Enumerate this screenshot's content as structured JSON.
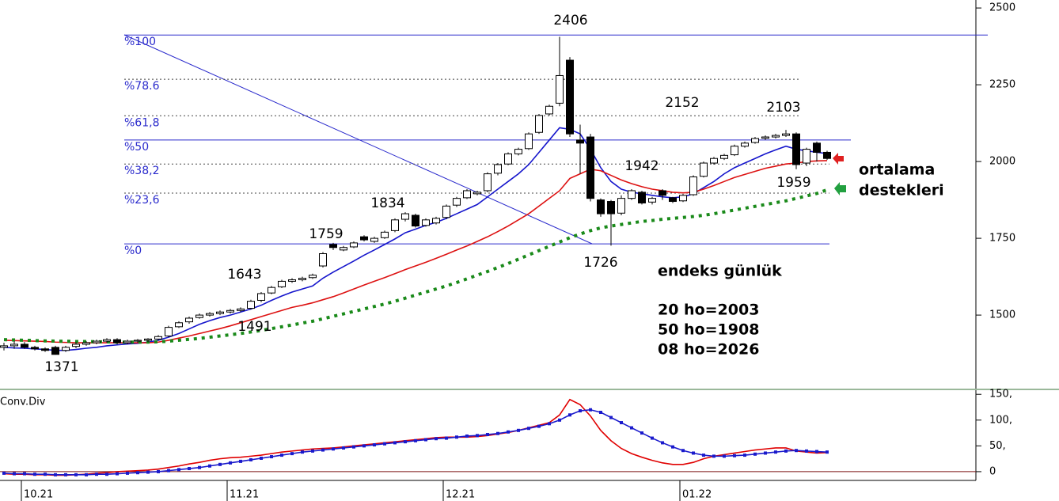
{
  "chart_data": [
    {
      "type": "candlestick",
      "categories": [
        null,
        null,
        "10.21",
        null,
        null,
        null,
        null,
        null,
        null,
        null,
        null,
        null,
        null,
        null,
        null,
        null,
        null,
        null,
        null,
        null,
        null,
        null,
        "11.21",
        null,
        null,
        null,
        null,
        null,
        null,
        null,
        null,
        null,
        null,
        null,
        null,
        null,
        null,
        null,
        null,
        null,
        null,
        null,
        null,
        "12.21",
        null,
        null,
        null,
        null,
        null,
        null,
        null,
        null,
        null,
        null,
        null,
        null,
        null,
        null,
        null,
        null,
        null,
        null,
        null,
        null,
        null,
        null,
        "01.22",
        null,
        null,
        null,
        null,
        null,
        null,
        null,
        null,
        null,
        null,
        null,
        null,
        null,
        null
      ],
      "open": [
        1395,
        1400,
        1405,
        1395,
        1390,
        1395,
        1385,
        1398,
        1405,
        1410,
        1415,
        1420,
        1410,
        1415,
        1418,
        1422,
        1432,
        1462,
        1478,
        1492,
        1500,
        1505,
        1510,
        1515,
        1522,
        1548,
        1572,
        1592,
        1610,
        1615,
        1622,
        1660,
        1730,
        1712,
        1722,
        1755,
        1740,
        1752,
        1775,
        1812,
        1825,
        1792,
        1800,
        1818,
        1858,
        1882,
        1895,
        1905,
        1962,
        1992,
        2025,
        2042,
        2095,
        2155,
        2190,
        2330,
        2070,
        2080,
        1875,
        1870,
        1832,
        1880,
        1900,
        1868,
        1905,
        1882,
        1872,
        1892,
        1952,
        1995,
        2010,
        2022,
        2050,
        2062,
        2076,
        2080,
        2085,
        2090,
        1995,
        2060,
        2030
      ],
      "high": [
        1410,
        1415,
        1412,
        1400,
        1395,
        1400,
        1400,
        1412,
        1415,
        1420,
        1425,
        1425,
        1420,
        1422,
        1425,
        1435,
        1465,
        1480,
        1495,
        1505,
        1510,
        1515,
        1520,
        1525,
        1550,
        1575,
        1595,
        1615,
        1620,
        1625,
        1635,
        1705,
        1735,
        1725,
        1740,
        1760,
        1755,
        1775,
        1815,
        1835,
        1830,
        1815,
        1820,
        1860,
        1885,
        1910,
        1905,
        1965,
        1995,
        2030,
        2045,
        2095,
        2155,
        2185,
        2406,
        2340,
        2120,
        2090,
        1880,
        1875,
        1890,
        1910,
        1905,
        1885,
        1910,
        1885,
        1895,
        1955,
        2000,
        2015,
        2025,
        2055,
        2065,
        2080,
        2085,
        2090,
        2103,
        2095,
        2045,
        2065,
        2035
      ],
      "low": [
        1385,
        1390,
        1390,
        1385,
        1380,
        1371,
        1380,
        1392,
        1400,
        1405,
        1410,
        1405,
        1405,
        1410,
        1412,
        1418,
        1428,
        1458,
        1472,
        1488,
        1495,
        1500,
        1505,
        1510,
        1518,
        1542,
        1568,
        1588,
        1605,
        1610,
        1618,
        1655,
        1712,
        1708,
        1718,
        1740,
        1735,
        1748,
        1770,
        1805,
        1785,
        1788,
        1795,
        1812,
        1852,
        1878,
        1890,
        1900,
        1955,
        1988,
        2020,
        2038,
        2090,
        2150,
        2180,
        2080,
        1960,
        1870,
        1820,
        1726,
        1825,
        1875,
        1860,
        1860,
        1875,
        1865,
        1868,
        1888,
        1948,
        1990,
        2005,
        2018,
        2045,
        2058,
        2070,
        2075,
        2080,
        1975,
        1985,
        2000,
        2005
      ],
      "close": [
        1400,
        1405,
        1395,
        1390,
        1385,
        1372,
        1395,
        1405,
        1410,
        1415,
        1420,
        1410,
        1415,
        1418,
        1422,
        1430,
        1460,
        1475,
        1490,
        1500,
        1505,
        1510,
        1515,
        1520,
        1545,
        1570,
        1590,
        1610,
        1615,
        1620,
        1630,
        1700,
        1720,
        1720,
        1735,
        1745,
        1750,
        1770,
        1810,
        1830,
        1790,
        1810,
        1815,
        1855,
        1880,
        1905,
        1900,
        1960,
        1990,
        2025,
        2040,
        2090,
        2150,
        2180,
        2280,
        2090,
        2060,
        1880,
        1830,
        1830,
        1880,
        1905,
        1865,
        1880,
        1890,
        1870,
        1890,
        1950,
        1995,
        2010,
        2020,
        2050,
        2060,
        2075,
        2080,
        2085,
        2090,
        1990,
        2040,
        2030,
        2010
      ],
      "up_color": "#ffffff",
      "down_color": "#000000",
      "moving_averages": [
        {
          "color": "#1515cc",
          "dotted": false,
          "values": [
            1395,
            1393,
            1392,
            1390,
            1388,
            1385,
            1385,
            1388,
            1392,
            1395,
            1400,
            1403,
            1406,
            1408,
            1412,
            1418,
            1428,
            1440,
            1455,
            1470,
            1482,
            1492,
            1500,
            1510,
            1520,
            1532,
            1548,
            1562,
            1575,
            1585,
            1595,
            1620,
            1640,
            1658,
            1676,
            1695,
            1712,
            1730,
            1748,
            1768,
            1780,
            1792,
            1802,
            1815,
            1830,
            1845,
            1860,
            1885,
            1910,
            1935,
            1960,
            1990,
            2030,
            2070,
            2110,
            2105,
            2090,
            2040,
            1980,
            1935,
            1910,
            1900,
            1895,
            1890,
            1885,
            1882,
            1885,
            1895,
            1915,
            1935,
            1960,
            1980,
            1995,
            2010,
            2025,
            2038,
            2050,
            2040,
            2035,
            2030,
            2026
          ]
        },
        {
          "color": "#dd1111",
          "dotted": false,
          "values": [
            1418,
            1417,
            1416,
            1415,
            1414,
            1412,
            1411,
            1410,
            1410,
            1410,
            1410,
            1410,
            1410,
            1410,
            1410,
            1412,
            1418,
            1425,
            1432,
            1440,
            1448,
            1456,
            1465,
            1475,
            1485,
            1495,
            1505,
            1515,
            1525,
            1532,
            1540,
            1550,
            1560,
            1572,
            1585,
            1598,
            1610,
            1622,
            1635,
            1648,
            1660,
            1672,
            1685,
            1698,
            1712,
            1725,
            1740,
            1755,
            1772,
            1790,
            1810,
            1830,
            1855,
            1880,
            1905,
            1945,
            1960,
            1975,
            1970,
            1955,
            1940,
            1928,
            1918,
            1910,
            1905,
            1900,
            1898,
            1900,
            1910,
            1922,
            1935,
            1948,
            1958,
            1968,
            1978,
            1985,
            1992,
            1995,
            2000,
            2002,
            2003
          ]
        },
        {
          "color": "#1a8a1a",
          "dotted": true,
          "values": [
            1420,
            1419,
            1418,
            1417,
            1416,
            1415,
            1415,
            1414,
            1414,
            1413,
            1413,
            1412,
            1412,
            1412,
            1412,
            1413,
            1415,
            1418,
            1421,
            1424,
            1428,
            1432,
            1436,
            1440,
            1445,
            1450,
            1456,
            1462,
            1468,
            1474,
            1480,
            1488,
            1496,
            1504,
            1512,
            1520,
            1528,
            1536,
            1545,
            1555,
            1565,
            1575,
            1585,
            1595,
            1606,
            1618,
            1630,
            1642,
            1655,
            1668,
            1682,
            1696,
            1710,
            1724,
            1738,
            1752,
            1764,
            1775,
            1784,
            1790,
            1795,
            1800,
            1805,
            1808,
            1812,
            1815,
            1818,
            1821,
            1825,
            1830,
            1836,
            1842,
            1848,
            1854,
            1860,
            1866,
            1872,
            1880,
            1888,
            1896,
            1908
          ]
        }
      ],
      "ylim": [
        1258,
        2526
      ],
      "yticks": [
        1500,
        1750,
        2000,
        2250,
        2500
      ],
      "fib_levels": [
        {
          "label": "%100",
          "value": 2412,
          "dotted": false
        },
        {
          "label": "%78.6",
          "value": 2268,
          "dotted": true
        },
        {
          "label": "%61,8",
          "value": 2149,
          "dotted": true
        },
        {
          "label": "%50",
          "value": 2070,
          "dotted": false
        },
        {
          "label": "%38,2",
          "value": 1992,
          "dotted": true
        },
        {
          "label": "%23,6",
          "value": 1897,
          "dotted": true
        },
        {
          "label": "%0",
          "value": 1732,
          "dotted": false
        }
      ],
      "annotations": [
        "2406",
        "2152",
        "2103",
        "1942",
        "1959",
        "1834",
        "1759",
        "1643",
        "1491",
        "1371",
        "1726"
      ],
      "notes": [
        "endeks günlük",
        "20 ho=2003",
        "50 ho=1908",
        "08 ho=2026"
      ],
      "side_note": [
        "ortalama",
        "destekleri"
      ]
    },
    {
      "type": "line",
      "title": "Conv.Div",
      "series": [
        {
          "color": "#e00000",
          "markers": false,
          "values": [
            -4,
            -5,
            -5,
            -6,
            -6,
            -7,
            -7,
            -6,
            -5,
            -3,
            -2,
            0,
            1,
            2,
            3,
            5,
            8,
            11,
            15,
            18,
            22,
            25,
            27,
            28,
            30,
            32,
            35,
            38,
            40,
            42,
            44,
            45,
            46,
            48,
            50,
            52,
            54,
            56,
            58,
            60,
            62,
            64,
            66,
            67,
            67,
            67,
            68,
            70,
            73,
            76,
            80,
            85,
            90,
            95,
            110,
            140,
            130,
            108,
            80,
            60,
            45,
            35,
            28,
            22,
            17,
            14,
            14,
            18,
            25,
            30,
            33,
            36,
            39,
            42,
            44,
            46,
            46,
            40,
            38,
            36,
            37
          ]
        },
        {
          "color": "#1a1acc",
          "markers": true,
          "values": [
            -3,
            -4,
            -4,
            -5,
            -5,
            -6,
            -6,
            -6,
            -6,
            -5,
            -5,
            -4,
            -3,
            -2,
            -1,
            0,
            2,
            4,
            6,
            8,
            11,
            14,
            17,
            20,
            23,
            26,
            29,
            32,
            35,
            38,
            40,
            42,
            44,
            46,
            48,
            50,
            52,
            54,
            56,
            58,
            60,
            62,
            64,
            65,
            67,
            69,
            70,
            72,
            74,
            77,
            80,
            84,
            88,
            93,
            100,
            110,
            118,
            120,
            115,
            105,
            95,
            85,
            75,
            65,
            56,
            48,
            41,
            36,
            32,
            30,
            30,
            31,
            32,
            34,
            36,
            38,
            40,
            41,
            40,
            39,
            38
          ]
        }
      ],
      "ylim": [
        -17,
        158
      ],
      "yticks": [
        {
          "value": 150,
          "label": "150,"
        },
        {
          "value": 100,
          "label": "100,"
        },
        {
          "value": 50,
          "label": "50,"
        },
        0
      ]
    }
  ]
}
